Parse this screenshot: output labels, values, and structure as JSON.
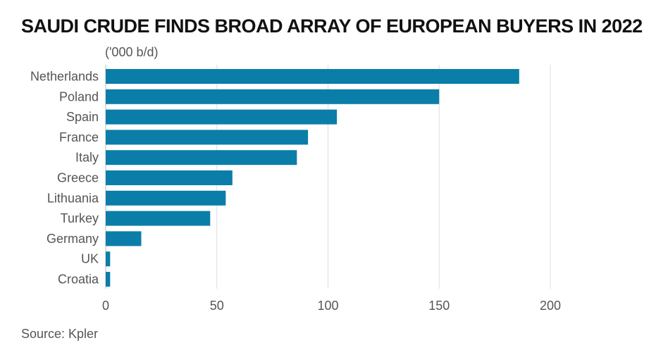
{
  "title": "SAUDI CRUDE FINDS BROAD ARRAY OF EUROPEAN BUYERS IN 2022",
  "source": "Source: Kpler",
  "colors": {
    "bar": "#0a7ea8",
    "grid": "#dddddd"
  },
  "chart_data": {
    "type": "bar",
    "orientation": "horizontal",
    "title": "SAUDI CRUDE FINDS BROAD ARRAY OF EUROPEAN BUYERS IN 2022",
    "unit_label": "('000 b/d)",
    "categories": [
      "Netherlands",
      "Poland",
      "Spain",
      "France",
      "Italy",
      "Greece",
      "Lithuania",
      "Turkey",
      "Germany",
      "UK",
      "Croatia"
    ],
    "values": [
      186,
      150,
      104,
      91,
      86,
      57,
      54,
      47,
      16,
      2,
      2
    ],
    "xlim": [
      0,
      200
    ],
    "xticks": [
      0,
      50,
      100,
      150,
      200
    ],
    "grid": true,
    "legend": "none"
  }
}
